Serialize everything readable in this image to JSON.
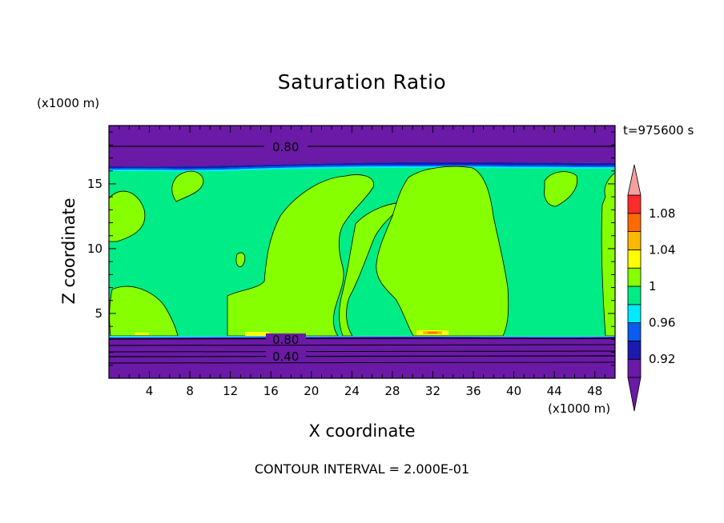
{
  "chart_data": {
    "type": "heatmap",
    "title": "Saturation Ratio",
    "xlabel": "X coordinate",
    "ylabel": "Z coordinate",
    "x_units": "(x1000 m)",
    "z_units": "(x1000 m)",
    "time_label": "t=975600 s",
    "footer": "CONTOUR INTERVAL = 2.000E-01",
    "xlim": [
      0,
      50
    ],
    "ylim": [
      0,
      19.5
    ],
    "x_ticks": [
      "4",
      "8",
      "12",
      "16",
      "20",
      "24",
      "28",
      "32",
      "36",
      "40",
      "44",
      "48"
    ],
    "y_ticks": [
      "5",
      "10",
      "15"
    ],
    "contour_labels": [
      "0.80",
      "0.80",
      "0.40"
    ],
    "colorbar": {
      "labels": [
        "1.08",
        "1.04",
        "1",
        "0.96",
        "0.92"
      ],
      "levels": [
        {
          "min": 0.9,
          "max": 0.92,
          "color": "#6a1aa6"
        },
        {
          "min": 0.92,
          "max": 0.94,
          "color": "#1a1ab0"
        },
        {
          "min": 0.94,
          "max": 0.96,
          "color": "#0a5cf0"
        },
        {
          "min": 0.96,
          "max": 0.98,
          "color": "#00eaff"
        },
        {
          "min": 0.98,
          "max": 1.0,
          "color": "#00ec86"
        },
        {
          "min": 1.0,
          "max": 1.02,
          "color": "#86ff00"
        },
        {
          "min": 1.02,
          "max": 1.04,
          "color": "#ffff00"
        },
        {
          "min": 1.04,
          "max": 1.06,
          "color": "#ffb800"
        },
        {
          "min": 1.06,
          "max": 1.08,
          "color": "#ff6a00"
        },
        {
          "min": 1.08,
          "max": 1.1,
          "color": "#ff2a2a"
        }
      ],
      "under_color": "#6a1aa6",
      "over_color": "#f4a0a0"
    },
    "colors": {
      "background": "#00ec86",
      "subsaturated": "#6a1aa6",
      "supersaturated": "#86ff00"
    }
  }
}
